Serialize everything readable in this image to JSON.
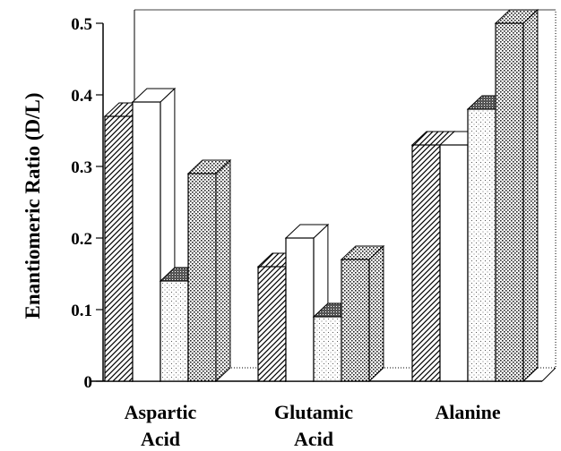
{
  "chart_data": {
    "type": "bar",
    "style": "3d-clustered",
    "categories": [
      [
        "Aspartic",
        "Acid"
      ],
      [
        "Glutamic",
        "Acid"
      ],
      [
        "Alanine"
      ]
    ],
    "series": [
      {
        "pattern": "diagonal-hatch",
        "values": [
          0.37,
          0.16,
          0.33
        ]
      },
      {
        "pattern": "white",
        "values": [
          0.39,
          0.2,
          0.33
        ]
      },
      {
        "pattern": "fine-dots",
        "values": [
          0.14,
          0.09,
          0.38
        ]
      },
      {
        "pattern": "dense-dots",
        "values": [
          0.29,
          0.17,
          0.5
        ]
      }
    ],
    "ylabel": "Enantiomeric Ratio (D/L)",
    "yticks": [
      "0",
      "0.1",
      "0.2",
      "0.3",
      "0.4",
      "0.5"
    ],
    "ylim": [
      0,
      0.5
    ],
    "grid": false,
    "legend": "none",
    "colors": {
      "ink": "#000000",
      "paper": "#ffffff"
    }
  }
}
